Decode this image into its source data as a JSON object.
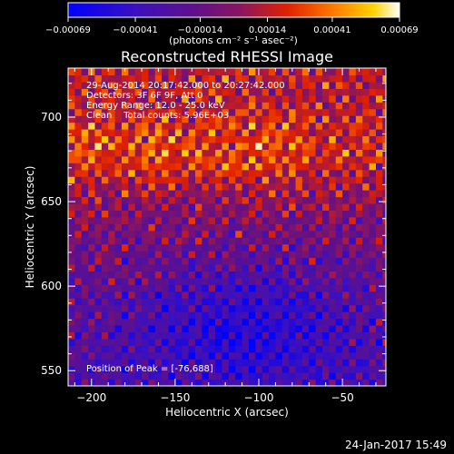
{
  "chart_data": {
    "type": "heatmap",
    "title": "Reconstructed RHESSI Image",
    "xlabel": "Heliocentric X (arcsec)",
    "ylabel": "Heliocentric Y (arcsec)",
    "xlim": [
      -214,
      -24
    ],
    "ylim": [
      541,
      729
    ],
    "xticks": [
      -200,
      -150,
      -100,
      -50
    ],
    "yticks": [
      550,
      600,
      650,
      700
    ],
    "x_tick_labels": [
      "−200",
      "−150",
      "−100",
      "−50"
    ],
    "y_tick_labels": [
      "550",
      "600",
      "650",
      "700"
    ],
    "colorbar": {
      "range": [
        -0.00069,
        0.00069
      ],
      "ticks": [
        -0.00069,
        -0.00041,
        -0.00014,
        0.00014,
        0.00041,
        0.00069
      ],
      "tick_labels": [
        "−0.00069",
        "−0.00041",
        "−0.00014",
        "0.00014",
        "0.00041",
        "0.00069"
      ],
      "unit_label": "(photons cm⁻² s⁻¹ asec⁻²)",
      "colormap": [
        "#0000ff",
        "#5000b0",
        "#7a1a8a",
        "#c02010",
        "#ff6000",
        "#ffd000",
        "#ffffff"
      ]
    },
    "annotations": {
      "time_range": "29-Aug-2014 20:17:42.000 to 20:27:42.000",
      "detectors": "Detectors: 3F 6F 9F, Att 0",
      "energy_range": "Energy Range: 12.0 - 25.0 keV",
      "algorithm": "Clean    Total counts: 5.96E+03",
      "peak": "Position of Peak = [-76,688]"
    },
    "footer_timestamp": "24-Jan-2017 15:49",
    "pixel_scale_arcsec": 4
  }
}
